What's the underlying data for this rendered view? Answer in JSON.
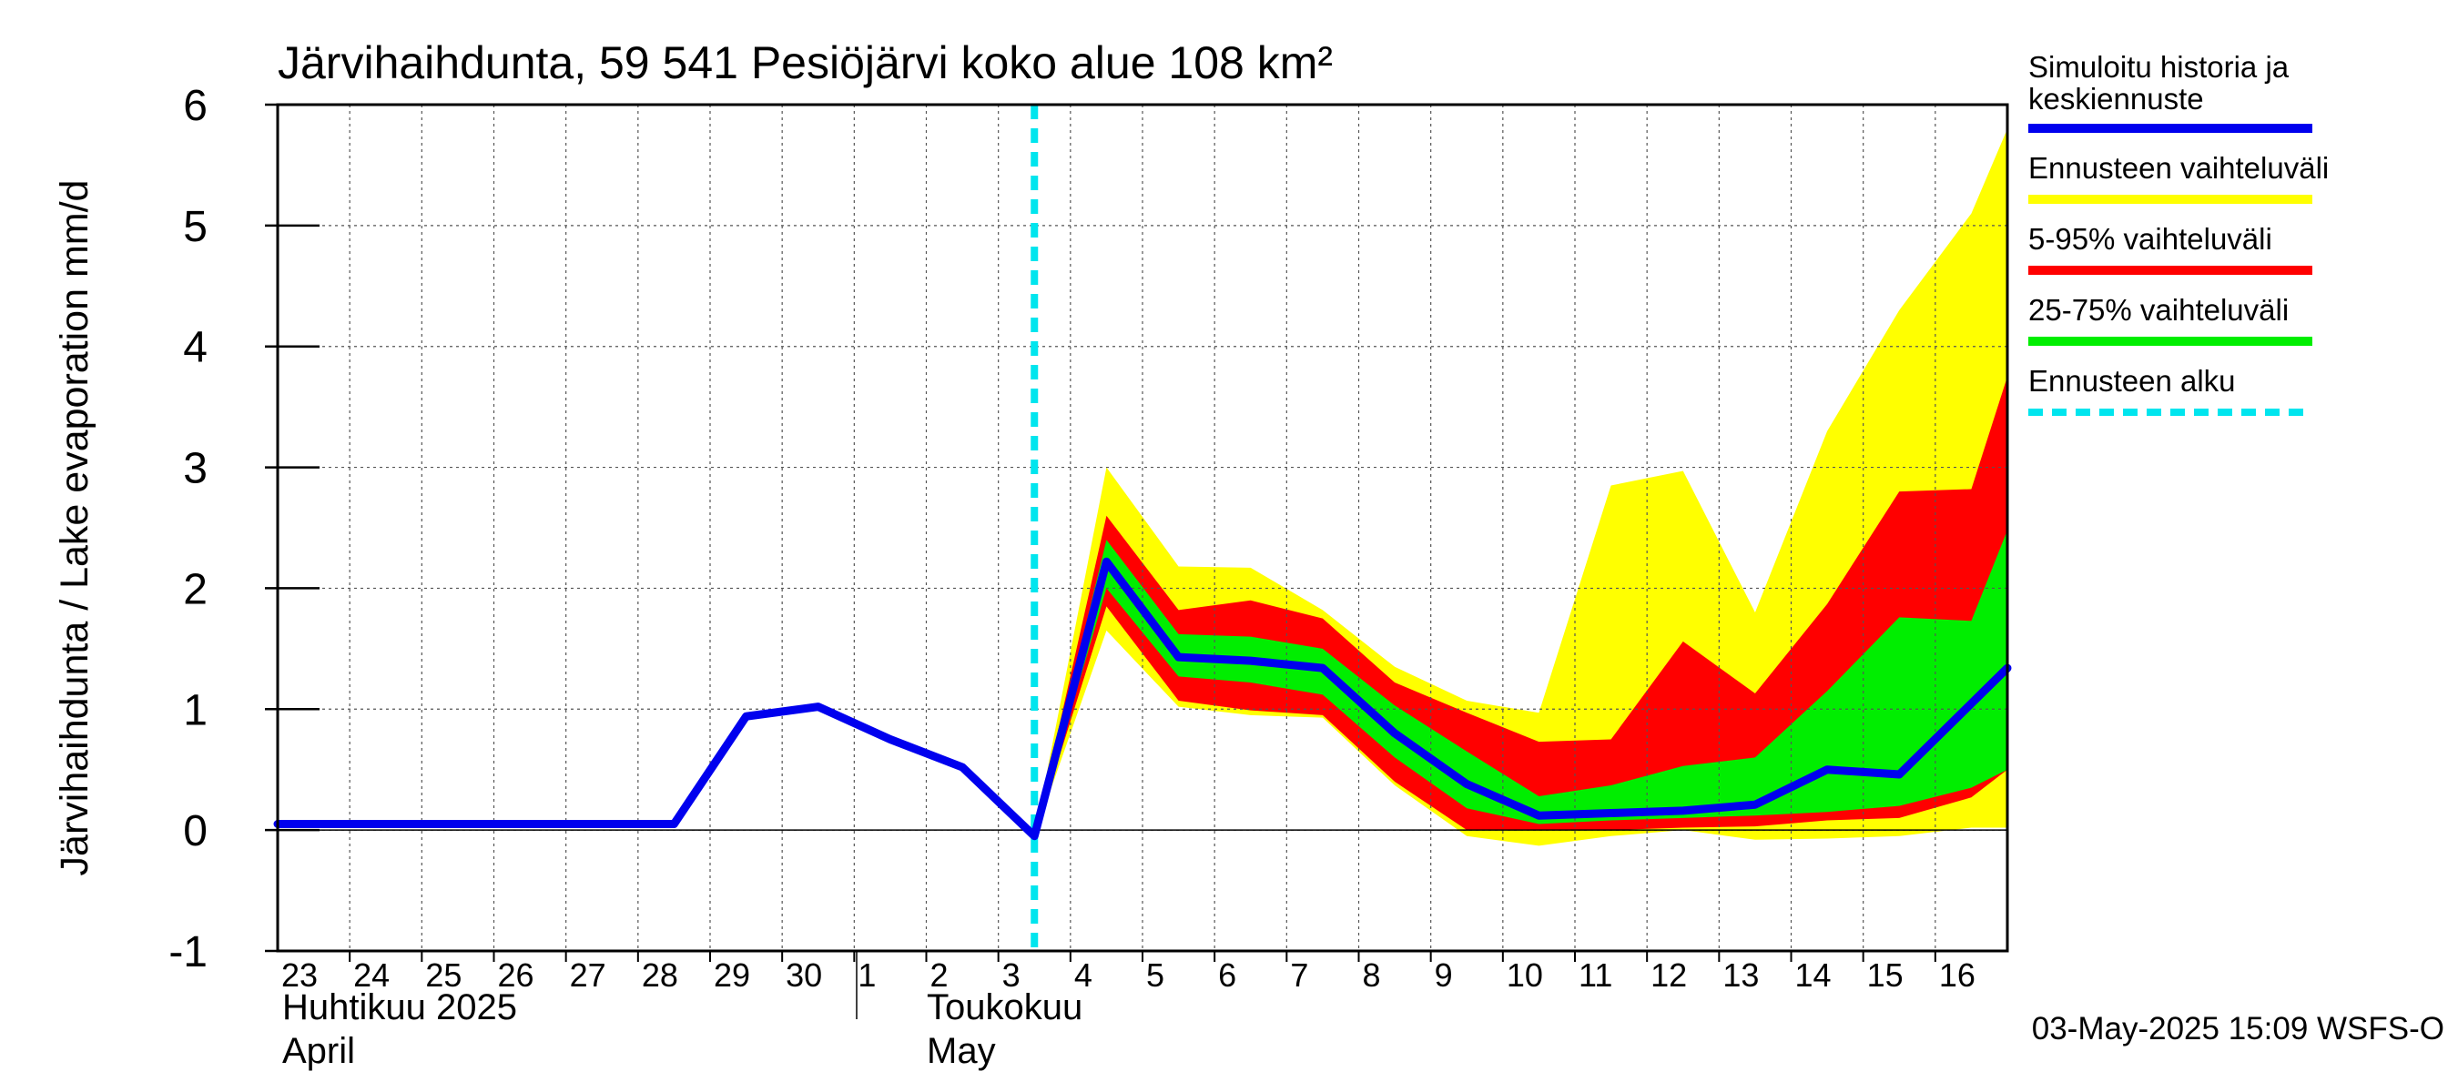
{
  "chart_data": {
    "type": "area",
    "title": "Järvihaihdunta, 59 541 Pesiöjärvi koko alue 108 km²",
    "ylabel": "Järvihaihdunta / Lake evaporation   mm/d",
    "ylim": [
      -1,
      6
    ],
    "yticks": [
      -1,
      0,
      1,
      2,
      3,
      4,
      5,
      6
    ],
    "xlim": [
      -0.5,
      23.5
    ],
    "x_tick_labels": [
      "23",
      "24",
      "25",
      "26",
      "27",
      "28",
      "29",
      "30",
      "1",
      "2",
      "3",
      "4",
      "5",
      "6",
      "7",
      "8",
      "9",
      "10",
      "11",
      "12",
      "13",
      "14",
      "15",
      "16"
    ],
    "month_labels": {
      "april_fi": "Huhtikuu  2025",
      "april_en": "April",
      "may_fi": "Toukokuu",
      "may_en": "May"
    },
    "forecast_start_x": 10,
    "legend": {
      "placement": "right",
      "items": [
        {
          "label": "Simuloitu historia ja keskiennuste",
          "color": "#0000ee",
          "style": "solid"
        },
        {
          "label": "Ennusteen vaihteluväli",
          "color": "#ffff00",
          "style": "solid"
        },
        {
          "label": "5-95% vaihteluväli",
          "color": "#ff0000",
          "style": "solid"
        },
        {
          "label": "25-75% vaihteluväli",
          "color": "#00ee00",
          "style": "solid"
        },
        {
          "label": "Ennusteen alku",
          "color": "#00e5ee",
          "style": "dashed"
        }
      ]
    },
    "timestamp": "03-May-2025 15:09 WSFS-O",
    "series": [
      {
        "name": "Simuloitu historia ja keskiennuste",
        "x": [
          -0.5,
          0,
          1,
          2,
          3,
          4,
          5,
          6,
          7,
          8,
          9,
          10,
          11,
          12,
          13,
          14,
          15,
          16,
          17,
          18,
          19,
          20,
          21,
          22,
          23.5
        ],
        "values": [
          0.05,
          0.05,
          0.05,
          0.05,
          0.05,
          0.05,
          0.05,
          0.94,
          1.02,
          0.75,
          0.52,
          -0.05,
          2.22,
          1.43,
          1.4,
          1.34,
          0.8,
          0.38,
          0.12,
          0.14,
          0.16,
          0.21,
          0.5,
          0.46,
          1.34
        ]
      }
    ],
    "bands": {
      "x": [
        10,
        11,
        12,
        13,
        14,
        15,
        16,
        17,
        18,
        19,
        20,
        21,
        22,
        23,
        23.5
      ],
      "yellow_hi": [
        -0.05,
        3.0,
        2.18,
        2.17,
        1.82,
        1.35,
        1.07,
        0.97,
        2.85,
        2.97,
        1.8,
        3.3,
        4.3,
        5.1,
        5.8
      ],
      "yellow_lo": [
        -0.05,
        1.65,
        1.02,
        0.95,
        0.93,
        0.37,
        -0.05,
        -0.13,
        -0.05,
        0.0,
        -0.08,
        -0.07,
        -0.05,
        0.02,
        0.02
      ],
      "red_hi": [
        -0.05,
        2.6,
        1.82,
        1.9,
        1.75,
        1.22,
        0.97,
        0.73,
        0.75,
        1.56,
        1.13,
        1.87,
        2.8,
        2.82,
        3.75
      ],
      "red_lo": [
        -0.05,
        1.85,
        1.07,
        0.99,
        0.95,
        0.4,
        0.0,
        0.0,
        0.0,
        0.02,
        0.03,
        0.08,
        0.1,
        0.27,
        0.5
      ],
      "green_hi": [
        -0.05,
        2.4,
        1.62,
        1.6,
        1.5,
        1.03,
        0.65,
        0.28,
        0.37,
        0.53,
        0.6,
        1.15,
        1.76,
        1.73,
        2.48
      ],
      "green_lo": [
        -0.05,
        2.0,
        1.27,
        1.22,
        1.12,
        0.6,
        0.18,
        0.05,
        0.08,
        0.1,
        0.12,
        0.15,
        0.2,
        0.35,
        0.5
      ]
    }
  }
}
